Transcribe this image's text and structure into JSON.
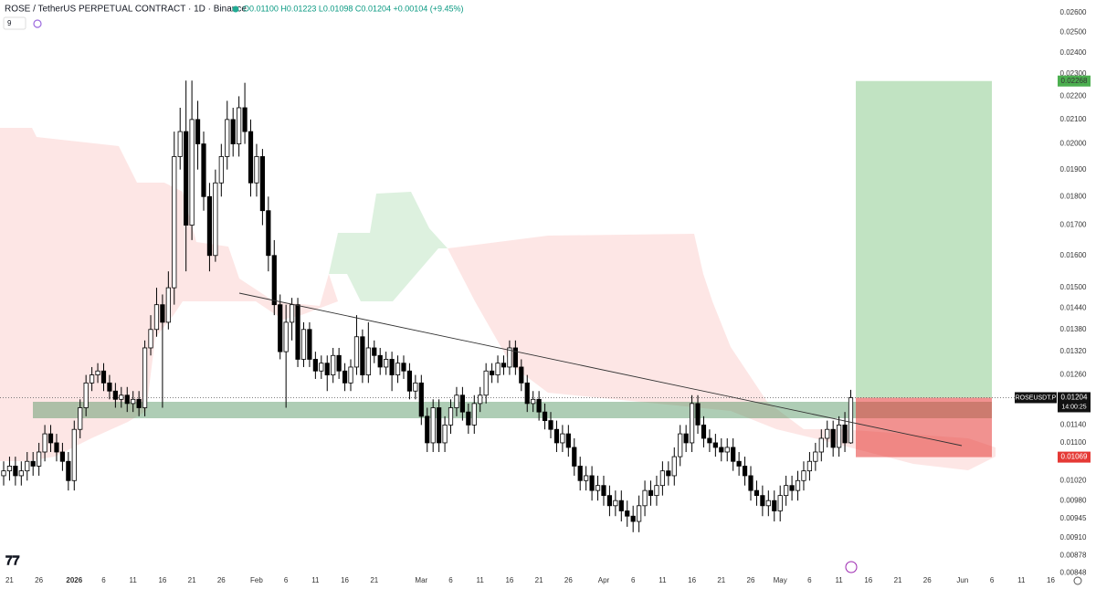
{
  "header": {
    "symbol": "ROSE / TetherUS PERPETUAL CONTRACT · 1D · Binance",
    "ohlc": "O0.01100 H0.01223 L0.01098 C0.01204 +0.00104 (+9.45%)",
    "indicators": "9"
  },
  "chart_data": {
    "type": "candlestick",
    "log_scale": true,
    "up_color": "#ffffff",
    "down_color": "#000000",
    "border_color": "#000000",
    "xlim": [
      -0.62,
      178.7
    ],
    "ylim": [
      0.00844,
      0.02667
    ],
    "yticks": [
      {
        "value": 0.026,
        "label": "0.02600"
      },
      {
        "value": 0.025,
        "label": "0.02500"
      },
      {
        "value": 0.024,
        "label": "0.02400"
      },
      {
        "value": 0.023,
        "label": "0.02300"
      },
      {
        "value": 0.022,
        "label": "0.02200"
      },
      {
        "value": 0.021,
        "label": "0.02100"
      },
      {
        "value": 0.02,
        "label": "0.02000"
      },
      {
        "value": 0.019,
        "label": "0.01900"
      },
      {
        "value": 0.018,
        "label": "0.01800"
      },
      {
        "value": 0.017,
        "label": "0.01700"
      },
      {
        "value": 0.016,
        "label": "0.01600"
      },
      {
        "value": 0.015,
        "label": "0.01500"
      },
      {
        "value": 0.0144,
        "label": "0.01440"
      },
      {
        "value": 0.0138,
        "label": "0.01380"
      },
      {
        "value": 0.0132,
        "label": "0.01320"
      },
      {
        "value": 0.0126,
        "label": "0.01260"
      },
      {
        "value": 0.0114,
        "label": "0.01140"
      },
      {
        "value": 0.011,
        "label": "0.01100"
      },
      {
        "value": 0.0102,
        "label": "0.01020"
      },
      {
        "value": 0.0098,
        "label": "0.00980"
      },
      {
        "value": 0.00945,
        "label": "0.00945"
      },
      {
        "value": 0.0091,
        "label": "0.00910"
      },
      {
        "value": 0.00878,
        "label": "0.00878"
      },
      {
        "value": 0.00848,
        "label": "0.00848"
      }
    ],
    "xticks": [
      {
        "value": 1,
        "label": "21"
      },
      {
        "value": 6,
        "label": "26"
      },
      {
        "value": 12,
        "label": "2026"
      },
      {
        "value": 17,
        "label": "6"
      },
      {
        "value": 22,
        "label": "11"
      },
      {
        "value": 27,
        "label": "16"
      },
      {
        "value": 32,
        "label": "21"
      },
      {
        "value": 37,
        "label": "26"
      },
      {
        "value": 43,
        "label": "Feb"
      },
      {
        "value": 48,
        "label": "6"
      },
      {
        "value": 53,
        "label": "11"
      },
      {
        "value": 58,
        "label": "16"
      },
      {
        "value": 63,
        "label": "21"
      },
      {
        "value": 71,
        "label": "Mar"
      },
      {
        "value": 76,
        "label": "6"
      },
      {
        "value": 81,
        "label": "11"
      },
      {
        "value": 86,
        "label": "16"
      },
      {
        "value": 91,
        "label": "21"
      },
      {
        "value": 96,
        "label": "26"
      },
      {
        "value": 102,
        "label": "Apr"
      },
      {
        "value": 107,
        "label": "6"
      },
      {
        "value": 112,
        "label": "11"
      },
      {
        "value": 117,
        "label": "16"
      },
      {
        "value": 122,
        "label": "21"
      },
      {
        "value": 127,
        "label": "26"
      },
      {
        "value": 132,
        "label": "May"
      },
      {
        "value": 137,
        "label": "6"
      },
      {
        "value": 142,
        "label": "11"
      },
      {
        "value": 147,
        "label": "16"
      },
      {
        "value": 152,
        "label": "21"
      },
      {
        "value": 157,
        "label": "26"
      },
      {
        "value": 163,
        "label": "Jun"
      },
      {
        "value": 168,
        "label": "6"
      },
      {
        "value": 173,
        "label": "11"
      },
      {
        "value": 178,
        "label": "16"
      }
    ],
    "ohlc": [
      [
        0.0103,
        0.0106,
        0.0101,
        0.0104
      ],
      [
        0.0104,
        0.0107,
        0.0102,
        0.0105
      ],
      [
        0.0105,
        0.0107,
        0.0101,
        0.0103
      ],
      [
        0.0103,
        0.0106,
        0.0101,
        0.0104
      ],
      [
        0.0104,
        0.0108,
        0.0102,
        0.0106
      ],
      [
        0.0106,
        0.0108,
        0.0103,
        0.0105
      ],
      [
        0.0105,
        0.011,
        0.0103,
        0.0108
      ],
      [
        0.0108,
        0.0114,
        0.0106,
        0.0112
      ],
      [
        0.0112,
        0.0114,
        0.0108,
        0.011
      ],
      [
        0.011,
        0.0112,
        0.0106,
        0.0108
      ],
      [
        0.0108,
        0.011,
        0.0104,
        0.0106
      ],
      [
        0.0106,
        0.0108,
        0.01,
        0.0102
      ],
      [
        0.0102,
        0.0115,
        0.01,
        0.0113
      ],
      [
        0.0113,
        0.012,
        0.0111,
        0.0118
      ],
      [
        0.0118,
        0.0126,
        0.0116,
        0.0124
      ],
      [
        0.0124,
        0.0128,
        0.0122,
        0.0126
      ],
      [
        0.0126,
        0.0129,
        0.0124,
        0.0127
      ],
      [
        0.0127,
        0.0129,
        0.0122,
        0.0124
      ],
      [
        0.0124,
        0.0126,
        0.012,
        0.0122
      ],
      [
        0.0122,
        0.0124,
        0.0118,
        0.012
      ],
      [
        0.012,
        0.0123,
        0.0118,
        0.0121
      ],
      [
        0.0121,
        0.0123,
        0.0117,
        0.0119
      ],
      [
        0.0119,
        0.0122,
        0.0117,
        0.012
      ],
      [
        0.012,
        0.0122,
        0.0116,
        0.0118
      ],
      [
        0.0118,
        0.0135,
        0.0116,
        0.0133
      ],
      [
        0.0133,
        0.0142,
        0.0131,
        0.0138
      ],
      [
        0.0138,
        0.015,
        0.0136,
        0.0145
      ],
      [
        0.0145,
        0.0148,
        0.0118,
        0.014
      ],
      [
        0.014,
        0.0155,
        0.0138,
        0.015
      ],
      [
        0.015,
        0.0205,
        0.0145,
        0.0195
      ],
      [
        0.0195,
        0.0215,
        0.019,
        0.0205
      ],
      [
        0.0205,
        0.0227,
        0.0155,
        0.017
      ],
      [
        0.017,
        0.0227,
        0.0165,
        0.021
      ],
      [
        0.021,
        0.0218,
        0.019,
        0.02
      ],
      [
        0.02,
        0.0205,
        0.0175,
        0.018
      ],
      [
        0.018,
        0.0185,
        0.0155,
        0.016
      ],
      [
        0.016,
        0.019,
        0.0158,
        0.0185
      ],
      [
        0.0185,
        0.02,
        0.018,
        0.0195
      ],
      [
        0.0195,
        0.0218,
        0.019,
        0.021
      ],
      [
        0.021,
        0.0215,
        0.0195,
        0.02
      ],
      [
        0.02,
        0.022,
        0.0195,
        0.0215
      ],
      [
        0.0215,
        0.0226,
        0.02,
        0.0205
      ],
      [
        0.0205,
        0.021,
        0.018,
        0.0185
      ],
      [
        0.0185,
        0.02,
        0.018,
        0.0195
      ],
      [
        0.0195,
        0.0198,
        0.017,
        0.0175
      ],
      [
        0.0175,
        0.018,
        0.0155,
        0.016
      ],
      [
        0.016,
        0.0165,
        0.0142,
        0.0145
      ],
      [
        0.0145,
        0.0148,
        0.013,
        0.0132
      ],
      [
        0.0132,
        0.0145,
        0.0118,
        0.014
      ],
      [
        0.014,
        0.0147,
        0.0135,
        0.0145
      ],
      [
        0.0145,
        0.0147,
        0.0128,
        0.013
      ],
      [
        0.013,
        0.014,
        0.0128,
        0.0138
      ],
      [
        0.0138,
        0.014,
        0.0128,
        0.013
      ],
      [
        0.013,
        0.0132,
        0.0125,
        0.0127
      ],
      [
        0.0127,
        0.0131,
        0.0125,
        0.0129
      ],
      [
        0.0129,
        0.0131,
        0.0122,
        0.0126
      ],
      [
        0.0126,
        0.0133,
        0.0124,
        0.0131
      ],
      [
        0.0131,
        0.0133,
        0.0125,
        0.0127
      ],
      [
        0.0127,
        0.0129,
        0.0122,
        0.0124
      ],
      [
        0.0124,
        0.013,
        0.0122,
        0.0128
      ],
      [
        0.0128,
        0.0142,
        0.0126,
        0.0136
      ],
      [
        0.0136,
        0.0138,
        0.0124,
        0.0126
      ],
      [
        0.0126,
        0.014,
        0.0124,
        0.0133
      ],
      [
        0.0133,
        0.0135,
        0.0129,
        0.0131
      ],
      [
        0.0131,
        0.0133,
        0.0126,
        0.0128
      ],
      [
        0.0128,
        0.0132,
        0.0126,
        0.013
      ],
      [
        0.013,
        0.0132,
        0.0122,
        0.0126
      ],
      [
        0.0126,
        0.0131,
        0.0124,
        0.0129
      ],
      [
        0.0129,
        0.0131,
        0.0125,
        0.0127
      ],
      [
        0.0127,
        0.0129,
        0.012,
        0.0122
      ],
      [
        0.0122,
        0.0126,
        0.012,
        0.0124
      ],
      [
        0.0124,
        0.0126,
        0.0114,
        0.0116
      ],
      [
        0.0116,
        0.0118,
        0.0108,
        0.011
      ],
      [
        0.011,
        0.012,
        0.0108,
        0.0118
      ],
      [
        0.0118,
        0.012,
        0.0108,
        0.011
      ],
      [
        0.011,
        0.0116,
        0.0108,
        0.0114
      ],
      [
        0.0114,
        0.012,
        0.0112,
        0.0118
      ],
      [
        0.0118,
        0.0123,
        0.0116,
        0.0121
      ],
      [
        0.0121,
        0.0123,
        0.0115,
        0.0117
      ],
      [
        0.0117,
        0.0119,
        0.0112,
        0.0114
      ],
      [
        0.0114,
        0.0121,
        0.0112,
        0.0119
      ],
      [
        0.0119,
        0.0123,
        0.0117,
        0.0121
      ],
      [
        0.0121,
        0.0129,
        0.0119,
        0.0127
      ],
      [
        0.0127,
        0.0129,
        0.0124,
        0.0126
      ],
      [
        0.0126,
        0.0131,
        0.0124,
        0.0129
      ],
      [
        0.0129,
        0.0131,
        0.0126,
        0.0128
      ],
      [
        0.0128,
        0.0135,
        0.0126,
        0.0133
      ],
      [
        0.0133,
        0.0135,
        0.0126,
        0.0128
      ],
      [
        0.0128,
        0.013,
        0.0122,
        0.0124
      ],
      [
        0.0124,
        0.0126,
        0.0117,
        0.0119
      ],
      [
        0.0119,
        0.0122,
        0.0117,
        0.012
      ],
      [
        0.012,
        0.0122,
        0.0115,
        0.0117
      ],
      [
        0.0117,
        0.0119,
        0.0113,
        0.0115
      ],
      [
        0.0115,
        0.0117,
        0.0111,
        0.0113
      ],
      [
        0.0113,
        0.0115,
        0.0108,
        0.011
      ],
      [
        0.011,
        0.0114,
        0.0108,
        0.0112
      ],
      [
        0.0112,
        0.0114,
        0.0107,
        0.0109
      ],
      [
        0.0109,
        0.0111,
        0.0103,
        0.0105
      ],
      [
        0.0105,
        0.0107,
        0.01,
        0.0102
      ],
      [
        0.0102,
        0.0105,
        0.01,
        0.0103
      ],
      [
        0.0103,
        0.0105,
        0.0098,
        0.01
      ],
      [
        0.01,
        0.0103,
        0.0098,
        0.0101
      ],
      [
        0.0101,
        0.0103,
        0.0097,
        0.0099
      ],
      [
        0.0099,
        0.0101,
        0.0095,
        0.0097
      ],
      [
        0.0097,
        0.01,
        0.0095,
        0.0098
      ],
      [
        0.0098,
        0.01,
        0.0094,
        0.0096
      ],
      [
        0.0096,
        0.0098,
        0.0093,
        0.0095
      ],
      [
        0.0095,
        0.0097,
        0.0092,
        0.0094
      ],
      [
        0.0094,
        0.0099,
        0.0092,
        0.0097
      ],
      [
        0.0097,
        0.0102,
        0.0095,
        0.01
      ],
      [
        0.01,
        0.0102,
        0.0097,
        0.0099
      ],
      [
        0.0099,
        0.0103,
        0.0097,
        0.0101
      ],
      [
        0.0101,
        0.0106,
        0.0099,
        0.0104
      ],
      [
        0.0104,
        0.0106,
        0.0101,
        0.0103
      ],
      [
        0.0103,
        0.0109,
        0.0101,
        0.0107
      ],
      [
        0.0107,
        0.0114,
        0.0105,
        0.0112
      ],
      [
        0.0112,
        0.0114,
        0.0108,
        0.011
      ],
      [
        0.011,
        0.0121,
        0.0108,
        0.0119
      ],
      [
        0.0119,
        0.0121,
        0.0112,
        0.0114
      ],
      [
        0.0114,
        0.0116,
        0.0109,
        0.0111
      ],
      [
        0.0111,
        0.0113,
        0.0108,
        0.011
      ],
      [
        0.011,
        0.0112,
        0.0107,
        0.0109
      ],
      [
        0.0109,
        0.0111,
        0.0106,
        0.0108
      ],
      [
        0.0108,
        0.0111,
        0.0106,
        0.0109
      ],
      [
        0.0109,
        0.0111,
        0.0104,
        0.0106
      ],
      [
        0.0106,
        0.0108,
        0.0103,
        0.0105
      ],
      [
        0.0105,
        0.0107,
        0.0101,
        0.0103
      ],
      [
        0.0103,
        0.0105,
        0.0098,
        0.01
      ],
      [
        0.01,
        0.0102,
        0.0097,
        0.0099
      ],
      [
        0.0099,
        0.0101,
        0.0095,
        0.0097
      ],
      [
        0.0097,
        0.01,
        0.0095,
        0.0098
      ],
      [
        0.0098,
        0.01,
        0.0094,
        0.0096
      ],
      [
        0.0096,
        0.0101,
        0.0094,
        0.0099
      ],
      [
        0.0099,
        0.0103,
        0.0097,
        0.0101
      ],
      [
        0.0101,
        0.0103,
        0.0098,
        0.01
      ],
      [
        0.01,
        0.0104,
        0.0098,
        0.0102
      ],
      [
        0.0102,
        0.0106,
        0.01,
        0.0104
      ],
      [
        0.0104,
        0.0108,
        0.0102,
        0.0106
      ],
      [
        0.0106,
        0.011,
        0.0104,
        0.0108
      ],
      [
        0.0108,
        0.0113,
        0.0106,
        0.0111
      ],
      [
        0.0111,
        0.0115,
        0.0109,
        0.0113
      ],
      [
        0.0113,
        0.0115,
        0.0107,
        0.0109
      ],
      [
        0.0109,
        0.0116,
        0.0107,
        0.0114
      ],
      [
        0.0114,
        0.0117,
        0.0108,
        0.011
      ],
      [
        0.011,
        0.01223,
        0.01098,
        0.01204
      ]
    ],
    "last_price": 0.01204,
    "symbol": "ROSEUSDT.P",
    "countdown": "14:00:25",
    "position": {
      "target": 0.02268,
      "entry": 0.01204,
      "stop": 0.01069,
      "target_color": "#4caf50",
      "stop_color": "#e53935"
    }
  }
}
